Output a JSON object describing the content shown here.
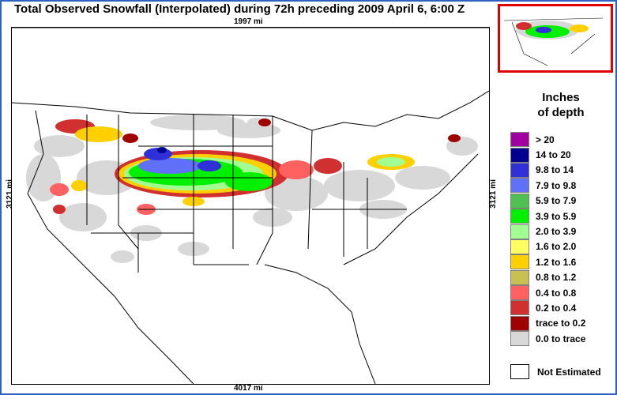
{
  "title": "Total Observed Snowfall (Interpolated) during 72h preceding 2009 April 6, 6:00 Z",
  "distances": {
    "top": "1997 mi",
    "bottom": "4017 mi",
    "left": "3121 mi",
    "right": "3121 mi"
  },
  "legend": {
    "title_line1": "Inches",
    "title_line2": "of depth",
    "items": [
      {
        "label": ">   20",
        "color": "#a000a0"
      },
      {
        "label": "14 to   20",
        "color": "#000090"
      },
      {
        "label": "9.8 to   14",
        "color": "#3030d8"
      },
      {
        "label": "7.9 to   9.8",
        "color": "#6070f8"
      },
      {
        "label": "5.9 to   7.9",
        "color": "#50c050"
      },
      {
        "label": "3.9 to   5.9",
        "color": "#00f000"
      },
      {
        "label": "2.0 to   3.9",
        "color": "#a0ff90"
      },
      {
        "label": "1.6 to   2.0",
        "color": "#ffff60"
      },
      {
        "label": "1.2 to   1.6",
        "color": "#ffd000"
      },
      {
        "label": "0.8 to   1.2",
        "color": "#c8c050"
      },
      {
        "label": "0.4 to   0.8",
        "color": "#ff6060"
      },
      {
        "label": "0.2 to   0.4",
        "color": "#d03030"
      },
      {
        "label": "trace to   0.2",
        "color": "#a00000"
      },
      {
        "label": "0.0 to trace",
        "color": "#d8d8d8"
      }
    ],
    "not_estimated": "Not Estimated"
  }
}
